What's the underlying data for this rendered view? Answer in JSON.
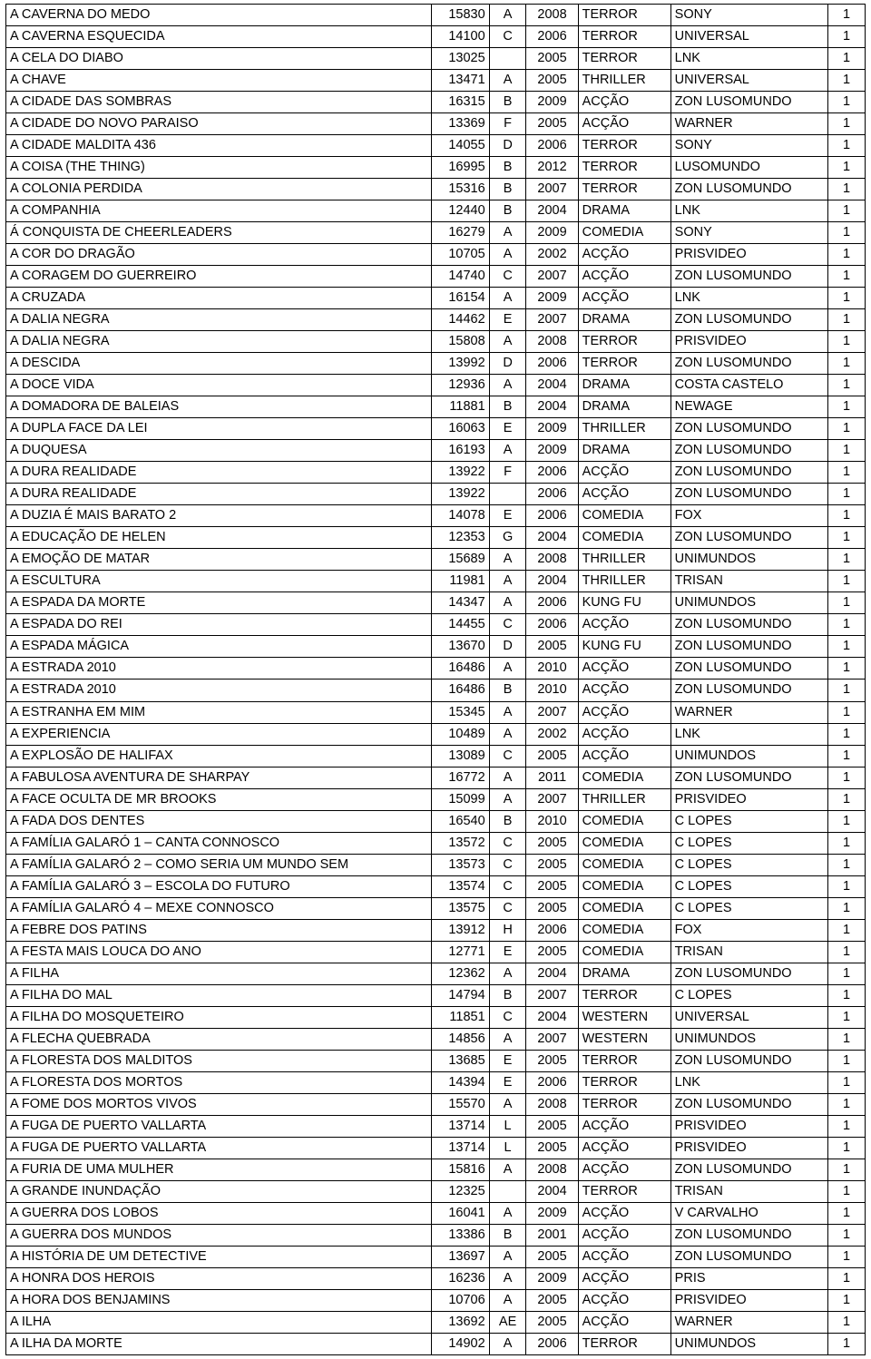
{
  "table": {
    "columns": [
      "title",
      "code",
      "letter",
      "year",
      "genre",
      "distributor",
      "qty"
    ],
    "rows": [
      [
        "A CAVERNA DO MEDO",
        "15830",
        "A",
        "2008",
        "TERROR",
        "SONY",
        "1"
      ],
      [
        "A CAVERNA ESQUECIDA",
        "14100",
        "C",
        "2006",
        "TERROR",
        "UNIVERSAL",
        "1"
      ],
      [
        "A CELA DO DIABO",
        "13025",
        "",
        "2005",
        "TERROR",
        "LNK",
        "1"
      ],
      [
        "A CHAVE",
        "13471",
        "A",
        "2005",
        "THRILLER",
        "UNIVERSAL",
        "1"
      ],
      [
        "A CIDADE DAS SOMBRAS",
        "16315",
        "B",
        "2009",
        "ACÇÃO",
        "ZON LUSOMUNDO",
        "1"
      ],
      [
        "A CIDADE DO NOVO PARAISO",
        "13369",
        "F",
        "2005",
        "ACÇÃO",
        "WARNER",
        "1"
      ],
      [
        "A CIDADE MALDITA 436",
        "14055",
        "D",
        "2006",
        "TERROR",
        "SONY",
        "1"
      ],
      [
        "A COISA (THE THING)",
        "16995",
        "B",
        "2012",
        "TERROR",
        "LUSOMUNDO",
        "1"
      ],
      [
        "A COLONIA PERDIDA",
        "15316",
        "B",
        "2007",
        "TERROR",
        "ZON LUSOMUNDO",
        "1"
      ],
      [
        "A COMPANHIA",
        "12440",
        "B",
        "2004",
        "DRAMA",
        "LNK",
        "1"
      ],
      [
        "Á CONQUISTA DE CHEERLEADERS",
        "16279",
        "A",
        "2009",
        "COMEDIA",
        "SONY",
        "1"
      ],
      [
        "A COR DO DRAGÃO",
        "10705",
        "A",
        "2002",
        "ACÇÃO",
        "PRISVIDEO",
        "1"
      ],
      [
        "A CORAGEM DO GUERREIRO",
        "14740",
        "C",
        "2007",
        "ACÇÃO",
        "ZON LUSOMUNDO",
        "1"
      ],
      [
        "A CRUZADA",
        "16154",
        "A",
        "2009",
        "ACÇÃO",
        "LNK",
        "1"
      ],
      [
        "A DALIA NEGRA",
        "14462",
        "E",
        "2007",
        "DRAMA",
        "ZON LUSOMUNDO",
        "1"
      ],
      [
        "A DALIA NEGRA",
        "15808",
        "A",
        "2008",
        "TERROR",
        "PRISVIDEO",
        "1"
      ],
      [
        "A DESCIDA",
        "13992",
        "D",
        "2006",
        "TERROR",
        "ZON LUSOMUNDO",
        "1"
      ],
      [
        "A DOCE VIDA",
        "12936",
        "A",
        "2004",
        "DRAMA",
        "COSTA CASTELO",
        "1"
      ],
      [
        "A DOMADORA DE BALEIAS",
        "11881",
        "B",
        "2004",
        "DRAMA",
        "NEWAGE",
        "1"
      ],
      [
        "A DUPLA FACE DA LEI",
        "16063",
        "E",
        "2009",
        "THRILLER",
        "ZON LUSOMUNDO",
        "1"
      ],
      [
        "A DUQUESA",
        "16193",
        "A",
        "2009",
        "DRAMA",
        "ZON LUSOMUNDO",
        "1"
      ],
      [
        "A DURA REALIDADE",
        "13922",
        "F",
        "2006",
        "ACÇÃO",
        "ZON LUSOMUNDO",
        "1"
      ],
      [
        "A DURA REALIDADE",
        "13922",
        "",
        "2006",
        "ACÇÃO",
        "ZON LUSOMUNDO",
        "1"
      ],
      [
        "A DUZIA É MAIS BARATO 2",
        "14078",
        "E",
        "2006",
        "COMEDIA",
        "FOX",
        "1"
      ],
      [
        "A EDUCAÇÃO DE HELEN",
        "12353",
        "G",
        "2004",
        "COMEDIA",
        "ZON LUSOMUNDO",
        "1"
      ],
      [
        "A EMOÇÃO DE MATAR",
        "15689",
        "A",
        "2008",
        "THRILLER",
        "UNIMUNDOS",
        "1"
      ],
      [
        "A ESCULTURA",
        "11981",
        "A",
        "2004",
        "THRILLER",
        "TRISAN",
        "1"
      ],
      [
        "A ESPADA DA MORTE",
        "14347",
        "A",
        "2006",
        "KUNG FU",
        "UNIMUNDOS",
        "1"
      ],
      [
        "A ESPADA DO REI",
        "14455",
        "C",
        "2006",
        "ACÇÃO",
        "ZON LUSOMUNDO",
        "1"
      ],
      [
        "A ESPADA MÁGICA",
        "13670",
        "D",
        "2005",
        "KUNG FU",
        "ZON LUSOMUNDO",
        "1"
      ],
      [
        "A ESTRADA 2010",
        "16486",
        "A",
        "2010",
        "ACÇÃO",
        "ZON LUSOMUNDO",
        "1"
      ],
      [
        "A ESTRADA 2010",
        "16486",
        "B",
        "2010",
        "ACÇÃO",
        "ZON LUSOMUNDO",
        "1"
      ],
      [
        "A ESTRANHA EM MIM",
        "15345",
        "A",
        "2007",
        "ACÇÃO",
        "WARNER",
        "1"
      ],
      [
        "A EXPERIENCIA",
        "10489",
        "A",
        "2002",
        "ACÇÃO",
        "LNK",
        "1"
      ],
      [
        "A EXPLOSÃO DE HALIFAX",
        "13089",
        "C",
        "2005",
        "ACÇÃO",
        "UNIMUNDOS",
        "1"
      ],
      [
        "A FABULOSA AVENTURA DE SHARPAY",
        "16772",
        "A",
        "2011",
        "COMEDIA",
        "ZON LUSOMUNDO",
        "1"
      ],
      [
        "A FACE OCULTA DE MR BROOKS",
        "15099",
        "A",
        "2007",
        "THRILLER",
        "PRISVIDEO",
        "1"
      ],
      [
        "A FADA DOS DENTES",
        "16540",
        "B",
        "2010",
        "COMEDIA",
        "C LOPES",
        "1"
      ],
      [
        "A FAMÍLIA GALARÓ 1 – CANTA CONNOSCO",
        "13572",
        "C",
        "2005",
        "COMEDIA",
        "C LOPES",
        "1"
      ],
      [
        "A FAMÍLIA GALARÓ 2 – COMO SERIA UM MUNDO SEM",
        "13573",
        "C",
        "2005",
        "COMEDIA",
        "C LOPES",
        "1"
      ],
      [
        "A FAMÍLIA GALARÓ 3 – ESCOLA DO FUTURO",
        "13574",
        "C",
        "2005",
        "COMEDIA",
        "C LOPES",
        "1"
      ],
      [
        "A FAMÍLIA GALARÓ 4 – MEXE CONNOSCO",
        "13575",
        "C",
        "2005",
        "COMEDIA",
        "C LOPES",
        "1"
      ],
      [
        "A FEBRE DOS PATINS",
        "13912",
        "H",
        "2006",
        "COMEDIA",
        "FOX",
        "1"
      ],
      [
        "A FESTA MAIS LOUCA DO ANO",
        "12771",
        "E",
        "2005",
        "COMEDIA",
        "TRISAN",
        "1"
      ],
      [
        "A FILHA",
        "12362",
        "A",
        "2004",
        "DRAMA",
        "ZON LUSOMUNDO",
        "1"
      ],
      [
        "A FILHA DO MAL",
        "14794",
        "B",
        "2007",
        "TERROR",
        "C LOPES",
        "1"
      ],
      [
        "A FILHA DO MOSQUETEIRO",
        "11851",
        "C",
        "2004",
        "WESTERN",
        "UNIVERSAL",
        "1"
      ],
      [
        "A FLECHA QUEBRADA",
        "14856",
        "A",
        "2007",
        "WESTERN",
        "UNIMUNDOS",
        "1"
      ],
      [
        "A FLORESTA DOS MALDITOS",
        "13685",
        "E",
        "2005",
        "TERROR",
        "ZON LUSOMUNDO",
        "1"
      ],
      [
        "A FLORESTA DOS MORTOS",
        "14394",
        "E",
        "2006",
        "TERROR",
        "LNK",
        "1"
      ],
      [
        "A FOME DOS MORTOS VIVOS",
        "15570",
        "A",
        "2008",
        "TERROR",
        "ZON LUSOMUNDO",
        "1"
      ],
      [
        "A FUGA DE PUERTO VALLARTA",
        "13714",
        "L",
        "2005",
        "ACÇÃO",
        "PRISVIDEO",
        "1"
      ],
      [
        "A FUGA DE PUERTO VALLARTA",
        "13714",
        "L",
        "2005",
        "ACÇÃO",
        "PRISVIDEO",
        "1"
      ],
      [
        "A FURIA DE UMA MULHER",
        "15816",
        "A",
        "2008",
        "ACÇÃO",
        "ZON LUSOMUNDO",
        "1"
      ],
      [
        "A GRANDE INUNDAÇÃO",
        "12325",
        "",
        "2004",
        "TERROR",
        "TRISAN",
        "1"
      ],
      [
        "A GUERRA DOS LOBOS",
        "16041",
        "A",
        "2009",
        "ACÇÃO",
        "V CARVALHO",
        "1"
      ],
      [
        "A GUERRA DOS MUNDOS",
        "13386",
        "B",
        "2001",
        "ACÇÃO",
        "ZON LUSOMUNDO",
        "1"
      ],
      [
        "A HISTÓRIA DE UM DETECTIVE",
        "13697",
        "A",
        "2005",
        "ACÇÃO",
        "ZON LUSOMUNDO",
        "1"
      ],
      [
        "A HONRA DOS HEROIS",
        "16236",
        "A",
        "2009",
        "ACÇÃO",
        "PRIS",
        "1"
      ],
      [
        "A HORA DOS BENJAMINS",
        "10706",
        "A",
        "2005",
        "ACÇÃO",
        "PRISVIDEO",
        "1"
      ],
      [
        "A ILHA",
        "13692",
        "AE",
        "2005",
        "ACÇÃO",
        "WARNER",
        "1"
      ],
      [
        "A ILHA DA MORTE",
        "14902",
        "A",
        "2006",
        "TERROR",
        "UNIMUNDOS",
        "1"
      ]
    ]
  }
}
